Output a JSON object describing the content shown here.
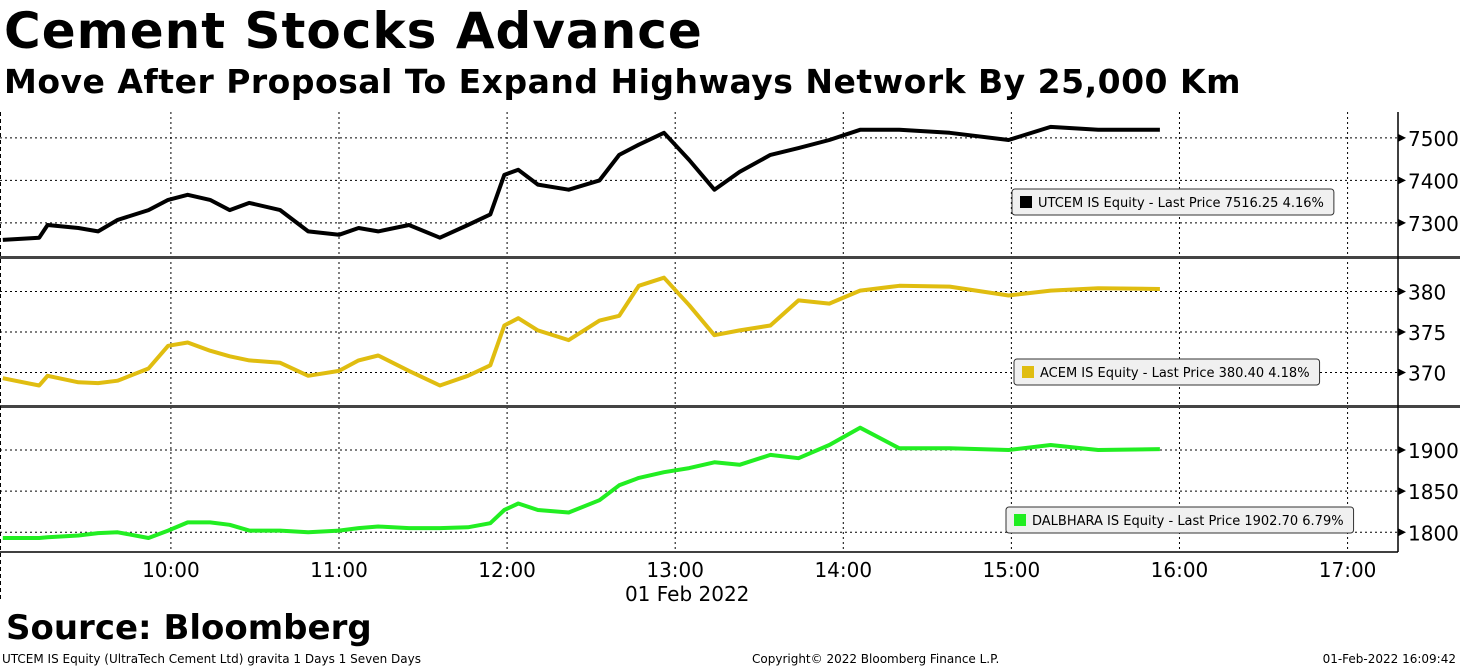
{
  "header": {
    "title": "Cement Stocks Advance",
    "subtitle": "Move After Proposal To Expand Highways Network By 25,000 Km"
  },
  "source": "Source: Bloomberg",
  "footer": {
    "left": "UTCEM IS Equity (UltraTech Cement Ltd) gravita 1 Days 1 Seven Days",
    "center": "Copyright© 2022 Bloomberg Finance L.P.",
    "right": "01-Feb-2022 16:09:42"
  },
  "chart_data": {
    "type": "line",
    "xlabel": "01 Feb 2022",
    "x_ticks": [
      "10:00",
      "11:00",
      "12:00",
      "13:00",
      "14:00",
      "15:00",
      "16:00",
      "17:00"
    ],
    "x_range": [
      "08:59",
      "17:18"
    ],
    "x": [
      "09:00",
      "09:13",
      "09:16",
      "09:27",
      "09:34",
      "09:41",
      "09:52",
      "09:59",
      "10:06",
      "10:14",
      "10:21",
      "10:28",
      "10:39",
      "10:49",
      "11:00",
      "11:07",
      "11:14",
      "11:25",
      "11:36",
      "11:46",
      "11:54",
      "11:59",
      "12:04",
      "12:11",
      "12:22",
      "12:33",
      "12:40",
      "12:47",
      "12:56",
      "13:05",
      "13:14",
      "13:23",
      "13:34",
      "13:44",
      "13:55",
      "14:06",
      "14:20",
      "14:38",
      "14:59",
      "15:14",
      "15:31",
      "15:53"
    ],
    "panels": [
      {
        "name": "UTCEM IS Equity",
        "legend": "UTCEM IS Equity - Last Price 7516.25  4.16%",
        "color": "#000000",
        "ylim": [
          7222,
          7561
        ],
        "y_ticks": [
          7300,
          7400,
          7500
        ],
        "values": [
          7260,
          7265,
          7295,
          7288,
          7280,
          7307,
          7330,
          7354,
          7366,
          7354,
          7330,
          7347,
          7330,
          7280,
          7272,
          7288,
          7280,
          7295,
          7265,
          7295,
          7320,
          7413,
          7425,
          7390,
          7378,
          7400,
          7460,
          7484,
          7512,
          7448,
          7378,
          7420,
          7460,
          7476,
          7495,
          7519,
          7519,
          7512,
          7495,
          7526,
          7519,
          7519
        ]
      },
      {
        "name": "ACEM IS Equity",
        "legend": "ACEM IS Equity - Last Price 380.40  4.18%",
        "color": "#e0bd10",
        "ylim": [
          366,
          384
        ],
        "y_ticks": [
          370,
          375,
          380
        ],
        "values": [
          369.3,
          368.4,
          369.6,
          368.8,
          368.7,
          369,
          370.5,
          373.3,
          373.7,
          372.7,
          372,
          371.5,
          371.2,
          369.6,
          370.2,
          371.5,
          372.1,
          370.2,
          368.4,
          369.6,
          370.9,
          375.8,
          376.7,
          375.2,
          374,
          376.4,
          377,
          380.7,
          381.7,
          378.3,
          374.6,
          375.2,
          375.8,
          378.9,
          378.5,
          380.1,
          380.7,
          380.6,
          379.5,
          380.1,
          380.4,
          380.3
        ]
      },
      {
        "name": "DALBHARA IS Equity",
        "legend": "DALBHARA IS Equity - Last Price 1902.70  6.79%",
        "color": "#22ee22",
        "ylim": [
          1776,
          1951
        ],
        "y_ticks": [
          1800,
          1850,
          1900
        ],
        "values": [
          1793,
          1793,
          1794,
          1796,
          1799,
          1800,
          1793,
          1802,
          1812,
          1812,
          1809,
          1802,
          1802,
          1800,
          1802,
          1805,
          1807,
          1805,
          1805,
          1806,
          1811,
          1827,
          1835,
          1827,
          1824,
          1839,
          1857,
          1866,
          1873,
          1878,
          1885,
          1882,
          1894,
          1890,
          1906,
          1927,
          1902,
          1902,
          1900,
          1906,
          1900,
          1901
        ]
      }
    ]
  }
}
